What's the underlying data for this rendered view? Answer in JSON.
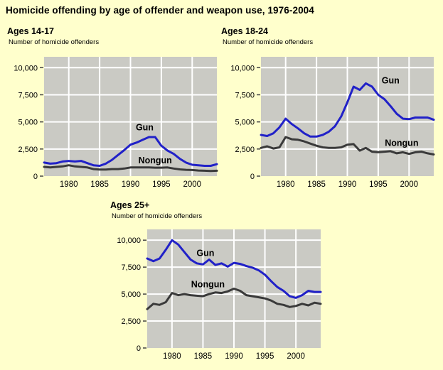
{
  "page": {
    "title": "Homicide offending by age of offender and weapon use, 1976-2004",
    "background": "#FFFFCC"
  },
  "colors": {
    "background": "#FFFFCC",
    "plot_bg": "#CACAC4",
    "grid": "#FFFFFF",
    "gun": "#2121C8",
    "nongun": "#3A3A3A",
    "tick": "#444444",
    "text": "#000000"
  },
  "chart_data": [
    {
      "type": "line",
      "title": "Ages 14-17",
      "ylabel": "Number of homicide offenders",
      "x_range": [
        1976,
        2004
      ],
      "y_range": [
        0,
        11000
      ],
      "x_ticks": [
        1980,
        1985,
        1990,
        1995,
        2000
      ],
      "y_ticks": [
        0,
        2500,
        5000,
        7500,
        10000
      ],
      "y_tick_labels": [
        "0",
        "2,500",
        "5,000",
        "7,500",
        "10,000"
      ],
      "grid": true,
      "legend_position": "inline-labels",
      "years": [
        1976,
        1977,
        1978,
        1979,
        1980,
        1981,
        1982,
        1983,
        1984,
        1985,
        1986,
        1987,
        1988,
        1989,
        1990,
        1991,
        1992,
        1993,
        1994,
        1995,
        1996,
        1997,
        1998,
        1999,
        2000,
        2001,
        2002,
        2003,
        2004
      ],
      "series": [
        {
          "name": "Gun",
          "color": "gun",
          "values": [
            1250,
            1150,
            1200,
            1350,
            1400,
            1350,
            1400,
            1200,
            1000,
            950,
            1150,
            1500,
            1950,
            2400,
            2900,
            3100,
            3350,
            3600,
            3600,
            2800,
            2350,
            2050,
            1600,
            1250,
            1050,
            1000,
            950,
            950,
            1100
          ]
        },
        {
          "name": "Nongun",
          "color": "nongun",
          "values": [
            850,
            800,
            850,
            900,
            1000,
            900,
            850,
            800,
            650,
            600,
            600,
            650,
            650,
            700,
            800,
            800,
            800,
            800,
            780,
            780,
            800,
            700,
            620,
            580,
            560,
            520,
            500,
            470,
            500
          ]
        }
      ],
      "labels": [
        {
          "text": "Gun",
          "year": 1992.3,
          "value": 4500
        },
        {
          "text": "Nongun",
          "year": 1994.0,
          "value": 1450
        }
      ]
    },
    {
      "type": "line",
      "title": "Ages 18-24",
      "ylabel": "Number of homicide offenders",
      "x_range": [
        1976,
        2004
      ],
      "y_range": [
        0,
        11000
      ],
      "x_ticks": [
        1980,
        1985,
        1990,
        1995,
        2000
      ],
      "y_ticks": [
        0,
        2500,
        5000,
        7500,
        10000
      ],
      "y_tick_labels": [
        "0",
        "2,500",
        "5,000",
        "7,500",
        "10,000"
      ],
      "grid": true,
      "legend_position": "inline-labels",
      "years": [
        1976,
        1977,
        1978,
        1979,
        1980,
        1981,
        1982,
        1983,
        1984,
        1985,
        1986,
        1987,
        1988,
        1989,
        1990,
        1991,
        1992,
        1993,
        1994,
        1995,
        1996,
        1997,
        1998,
        1999,
        2000,
        2001,
        2002,
        2003,
        2004
      ],
      "series": [
        {
          "name": "Gun",
          "color": "gun",
          "values": [
            3800,
            3700,
            3950,
            4500,
            5300,
            4800,
            4400,
            3950,
            3650,
            3650,
            3800,
            4100,
            4600,
            5500,
            6800,
            8250,
            7950,
            8550,
            8250,
            7500,
            7100,
            6450,
            5750,
            5300,
            5250,
            5400,
            5400,
            5400,
            5200
          ]
        },
        {
          "name": "Nongun",
          "color": "nongun",
          "values": [
            2600,
            2750,
            2550,
            2650,
            3600,
            3400,
            3350,
            3200,
            3000,
            2800,
            2650,
            2600,
            2600,
            2650,
            2900,
            2950,
            2350,
            2600,
            2250,
            2200,
            2250,
            2300,
            2100,
            2200,
            2050,
            2200,
            2250,
            2100,
            2000
          ]
        }
      ],
      "labels": [
        {
          "text": "Gun",
          "year": 1997.0,
          "value": 8800
        },
        {
          "text": "Nongun",
          "year": 1998.8,
          "value": 3050
        }
      ]
    },
    {
      "type": "line",
      "title": "Ages 25+",
      "ylabel": "Number of homicide offenders",
      "x_range": [
        1976,
        2004
      ],
      "y_range": [
        0,
        11000
      ],
      "x_ticks": [
        1980,
        1985,
        1990,
        1995,
        2000
      ],
      "y_ticks": [
        0,
        2500,
        5000,
        7500,
        10000
      ],
      "y_tick_labels": [
        "0",
        "2,500",
        "5,000",
        "7,500",
        "10,000"
      ],
      "grid": true,
      "legend_position": "inline-labels",
      "years": [
        1976,
        1977,
        1978,
        1979,
        1980,
        1981,
        1982,
        1983,
        1984,
        1985,
        1986,
        1987,
        1988,
        1989,
        1990,
        1991,
        1992,
        1993,
        1994,
        1995,
        1996,
        1997,
        1998,
        1999,
        2000,
        2001,
        2002,
        2003,
        2004
      ],
      "series": [
        {
          "name": "Gun",
          "color": "gun",
          "values": [
            8300,
            8050,
            8300,
            9100,
            10000,
            9600,
            8900,
            8200,
            7850,
            7750,
            8200,
            7700,
            7850,
            7550,
            7900,
            7800,
            7600,
            7450,
            7200,
            6800,
            6200,
            5650,
            5300,
            4800,
            4650,
            4900,
            5300,
            5200,
            5200
          ]
        },
        {
          "name": "Nongun",
          "color": "nongun",
          "values": [
            3600,
            4100,
            4000,
            4250,
            5100,
            4900,
            5000,
            4900,
            4850,
            4800,
            5000,
            5150,
            5100,
            5250,
            5500,
            5300,
            4900,
            4800,
            4700,
            4600,
            4400,
            4100,
            4000,
            3800,
            3900,
            4100,
            3950,
            4200,
            4100
          ]
        }
      ],
      "labels": [
        {
          "text": "Gun",
          "year": 1985.4,
          "value": 8800
        },
        {
          "text": "Nongun",
          "year": 1985.8,
          "value": 5900
        }
      ]
    }
  ]
}
